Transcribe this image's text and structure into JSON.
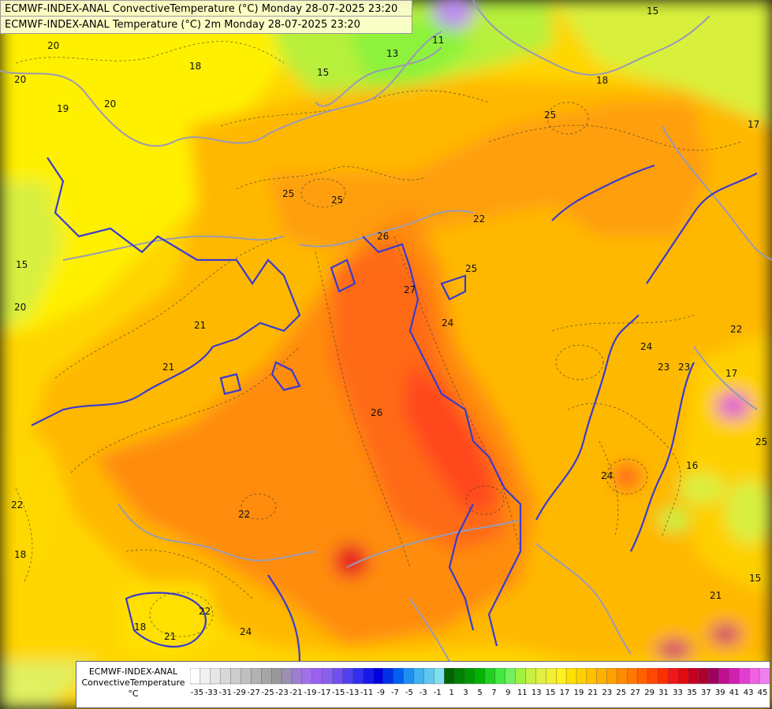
{
  "header": {
    "line1": "ECMWF-INDEX-ANAL ConvectiveTemperature (°C) Monday 28-07-2025 23:20",
    "line2": "ECMWF-INDEX-ANAL Temperature (°C) 2m Monday 28-07-2025 23:20"
  },
  "legend": {
    "model": "ECMWF-INDEX-ANAL",
    "parameter": "ConvectiveTemperature",
    "unit": "°C",
    "tick_labels": [
      "-35",
      "-33",
      "-31",
      "-29",
      "-27",
      "-25",
      "-23",
      "-21",
      "-19",
      "-17",
      "-15",
      "-13",
      "-11",
      "-9",
      "-7",
      "-5",
      "-3",
      "-1",
      "1",
      "3",
      "5",
      "7",
      "9",
      "11",
      "13",
      "15",
      "17",
      "19",
      "21",
      "23",
      "25",
      "27",
      "29",
      "31",
      "33",
      "35",
      "37",
      "39",
      "41",
      "43",
      "45"
    ]
  },
  "contour_labels": [
    "20",
    "18",
    "19",
    "20",
    "15",
    "13",
    "11",
    "15",
    "18",
    "25",
    "25",
    "25",
    "26",
    "22",
    "25",
    "27",
    "24",
    "23",
    "22",
    "24",
    "21",
    "23",
    "26",
    "21",
    "22",
    "24",
    "22",
    "18",
    "18",
    "21",
    "22",
    "24",
    "25",
    "16",
    "17",
    "20",
    "15",
    "20",
    "17",
    "21",
    "15"
  ],
  "colors": {
    "ocean": "#e9e94a",
    "cool": "#a8f04a",
    "mild": "#ffe600",
    "warm": "#ffbf00",
    "hot": "#ff9800",
    "very_hot": "#ff5a1e",
    "extreme": "#e01a2a",
    "border": "#6b6bd8",
    "country_border": "#cccccc"
  }
}
